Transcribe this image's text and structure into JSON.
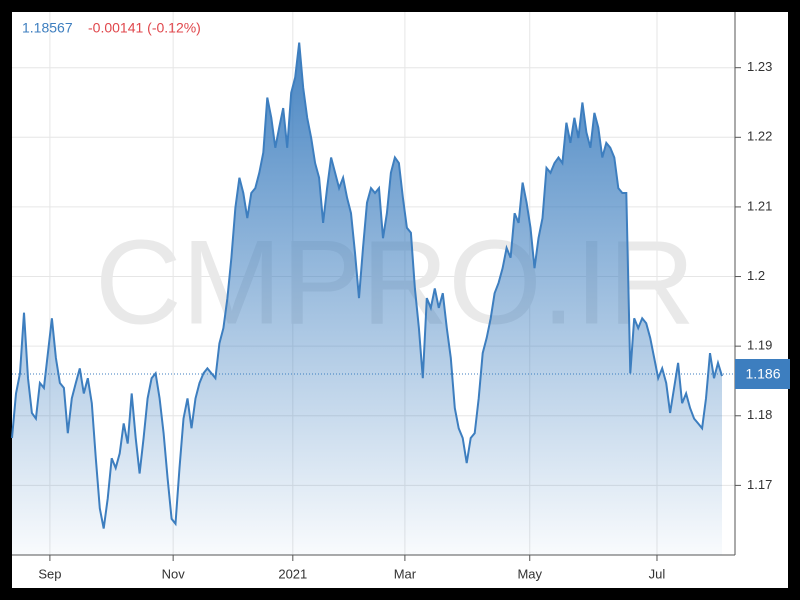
{
  "chart_data": {
    "type": "area",
    "price": "1.18567",
    "change": "-0.00141 (-0.12%)",
    "watermark": "CMPRO.IR",
    "color": "#3d7ebf",
    "values": [
      1.1768,
      1.1832,
      1.1861,
      1.1948,
      1.1854,
      1.1804,
      1.1796,
      1.1847,
      1.184,
      1.189,
      1.194,
      1.1883,
      1.1847,
      1.184,
      1.1775,
      1.1825,
      1.1847,
      1.1868,
      1.1832,
      1.1854,
      1.1818,
      1.1739,
      1.1667,
      1.1638,
      1.1681,
      1.1739,
      1.1725,
      1.1746,
      1.1789,
      1.176,
      1.1832,
      1.1768,
      1.1717,
      1.1768,
      1.1825,
      1.1854,
      1.1861,
      1.1825,
      1.1775,
      1.171,
      1.1652,
      1.1645,
      1.1725,
      1.1796,
      1.1825,
      1.1782,
      1.1825,
      1.1847,
      1.1861,
      1.1868,
      1.1861,
      1.1854,
      1.1904,
      1.1926,
      1.1969,
      1.2027,
      1.2099,
      1.2142,
      1.212,
      1.2084,
      1.212,
      1.2127,
      1.2149,
      1.2178,
      1.2257,
      1.2228,
      1.2185,
      1.2214,
      1.2242,
      1.2185,
      1.2264,
      1.2286,
      1.2336,
      1.2271,
      1.2228,
      1.2199,
      1.2163,
      1.2142,
      1.2077,
      1.2127,
      1.2171,
      1.2149,
      1.2127,
      1.2142,
      1.2113,
      1.2091,
      1.2034,
      1.1969,
      1.2041,
      1.2106,
      1.2127,
      1.212,
      1.2127,
      1.2055,
      1.2091,
      1.2149,
      1.2171,
      1.2163,
      1.2113,
      1.207,
      1.2063,
      1.1983,
      1.1926,
      1.1854,
      1.1969,
      1.1955,
      1.1983,
      1.1955,
      1.1976,
      1.1926,
      1.1883,
      1.1811,
      1.1782,
      1.1768,
      1.1732,
      1.1768,
      1.1775,
      1.1825,
      1.189,
      1.1912,
      1.194,
      1.1976,
      1.1991,
      1.2012,
      1.2041,
      1.2027,
      1.2091,
      1.2077,
      1.2135,
      1.2106,
      1.207,
      1.2012,
      1.2055,
      1.2084,
      1.2156,
      1.2149,
      1.2163,
      1.2171,
      1.2163,
      1.2221,
      1.2192,
      1.2228,
      1.2199,
      1.225,
      1.2207,
      1.2185,
      1.2235,
      1.2214,
      1.2171,
      1.2192,
      1.2185,
      1.2171,
      1.2127,
      1.212,
      1.212,
      1.1861,
      1.194,
      1.1926,
      1.194,
      1.1933,
      1.1912,
      1.1883,
      1.1854,
      1.1868,
      1.1847,
      1.1804,
      1.184,
      1.1876,
      1.1818,
      1.1832,
      1.1811,
      1.1796,
      1.1789,
      1.1782,
      1.1825,
      1.189,
      1.1854,
      1.1876,
      1.1857
    ],
    "xlim": [
      0,
      178
    ],
    "xticks": [
      {
        "value": 9.5,
        "label": "Sep"
      },
      {
        "value": 40.4,
        "label": "Nov"
      },
      {
        "value": 70.4,
        "label": "2021"
      },
      {
        "value": 98.5,
        "label": "Mar"
      },
      {
        "value": 129.8,
        "label": "May"
      },
      {
        "value": 161.7,
        "label": "Jul"
      }
    ],
    "ylim": [
      1.16,
      1.238
    ],
    "yticks": [
      1.17,
      1.18,
      1.19,
      1.2,
      1.21,
      1.22,
      1.23
    ],
    "current": {
      "value": 1.186,
      "label": "1.186"
    },
    "grid": true
  }
}
